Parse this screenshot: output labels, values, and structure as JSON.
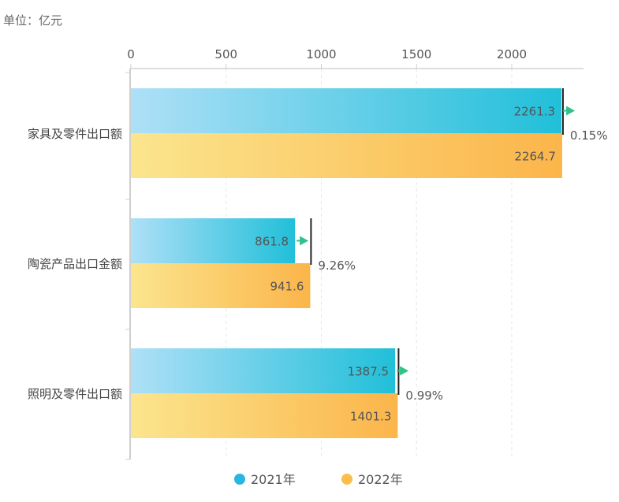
{
  "unit_label": "单位：亿元",
  "colors": {
    "series_2021_start": "#aee0f7",
    "series_2021_end": "#21bfd9",
    "series_2022_start": "#fbe58e",
    "series_2022_end": "#fbb54a",
    "growth_arrow": "#2fc38a",
    "growth_line": "#222222",
    "legend_2021": "#2bb6df",
    "legend_2022": "#fbbd4c"
  },
  "chart_data": {
    "type": "bar",
    "orientation": "horizontal",
    "xlim": [
      0,
      2400
    ],
    "x_ticks": [
      "0",
      "500",
      "1000",
      "1500",
      "2000"
    ],
    "grid": true,
    "legend_position": "bottom-center",
    "categories": [
      "家具及零件出口额",
      "陶瓷产品出口金额",
      "照明及零件出口额"
    ],
    "series": [
      {
        "name": "2021年",
        "values": [
          2261.3,
          861.8,
          1387.5
        ],
        "labels": [
          "2261.3",
          "861.8",
          "1387.5"
        ]
      },
      {
        "name": "2022年",
        "values": [
          2264.7,
          941.6,
          1401.3
        ],
        "labels": [
          "2264.7",
          "941.6",
          "1401.3"
        ]
      }
    ],
    "growth_rates": [
      "0.15%",
      "9.26%",
      "0.99%"
    ]
  }
}
